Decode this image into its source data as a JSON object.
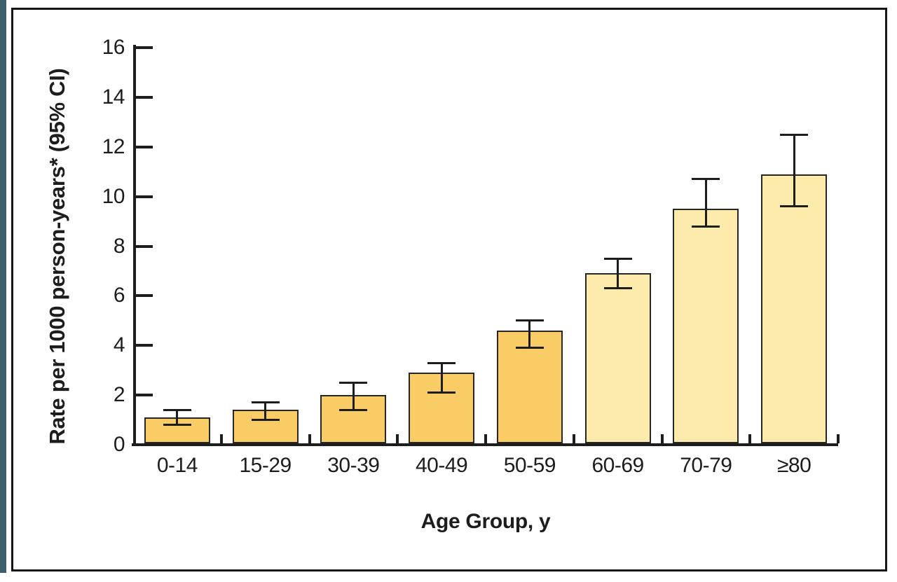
{
  "figure": {
    "background": "#ffffff",
    "accent_stripe_color": "#3E5E6E",
    "frame_border_color": "#151515"
  },
  "chart_data": {
    "type": "bar",
    "title": "",
    "xlabel": "Age Group, y",
    "ylabel": "Rate per 1000 person-years* (95% CI)",
    "categories": [
      "0-14",
      "15-29",
      "30-39",
      "40-49",
      "50-59",
      "60-69",
      "70-79",
      "≥80"
    ],
    "values": [
      1.1,
      1.4,
      2.0,
      2.9,
      4.6,
      6.9,
      9.5,
      10.9
    ],
    "error_bars": true,
    "ci_low": [
      0.8,
      1.0,
      1.4,
      2.1,
      3.9,
      6.3,
      8.8,
      9.6
    ],
    "ci_high": [
      1.4,
      1.7,
      2.5,
      3.3,
      5.0,
      7.5,
      10.7,
      12.5
    ],
    "bar_shades": [
      "dark",
      "dark",
      "dark",
      "dark",
      "dark",
      "light",
      "light",
      "light"
    ],
    "ylim": [
      0,
      16
    ],
    "ytick_step": 2,
    "yticks": [
      0,
      2,
      4,
      6,
      8,
      10,
      12,
      14,
      16
    ],
    "grid": false,
    "legend": null,
    "ticks_direction": "in",
    "colors": {
      "bar_dark": "#FACC66",
      "bar_light": "#FCEBAB",
      "bar_border": "#262626",
      "axis": "#1d1d1d",
      "text": "#1d1d1d"
    }
  }
}
